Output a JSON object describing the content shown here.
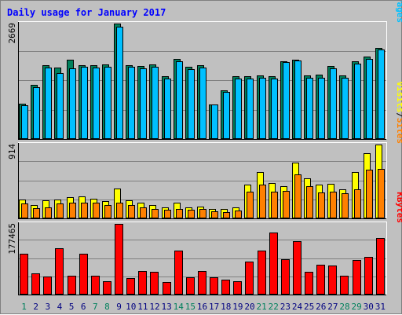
{
  "chart_data": {
    "type": "bar",
    "title": "Daily usage for January 2017",
    "categories": [
      "1",
      "2",
      "3",
      "4",
      "5",
      "6",
      "7",
      "8",
      "9",
      "10",
      "11",
      "12",
      "13",
      "14",
      "15",
      "16",
      "17",
      "18",
      "19",
      "20",
      "21",
      "22",
      "23",
      "24",
      "25",
      "26",
      "27",
      "28",
      "29",
      "30",
      "31"
    ],
    "weekend_days": [
      "1",
      "7",
      "8",
      "14",
      "15",
      "21",
      "22",
      "28",
      "29"
    ],
    "colors": {
      "hits": "#00805c",
      "files": "#00c0ff",
      "sites": "#ff8000",
      "visits": "#ffff00",
      "kbytes": "#ff0000",
      "weekend_label": "#00805c",
      "weekday_label": "#000080",
      "pages": "#00c0ff",
      "files_label": "#0000ff",
      "sites_label": "#ff8000",
      "visits_label": "#ffff00",
      "kbytes_label": "#ff0000",
      "title": "#0000ff"
    },
    "panels": [
      {
        "id": "top",
        "ymax": 2669,
        "ymax_label": "2669",
        "legend": [
          {
            "text": "Pages",
            "color": "#00c0ff"
          },
          {
            "text": "/",
            "color": "#000000"
          },
          {
            "text": "Files",
            "color": "#0000ff"
          },
          {
            "text": "/",
            "color": "#000000"
          },
          {
            "text": "Hits",
            "color": "#00805c"
          }
        ],
        "series": [
          {
            "name": "Hits",
            "values": [
              820,
              1250,
              1700,
              1660,
              1840,
              1700,
              1700,
              1720,
              2669,
              1700,
              1680,
              1730,
              1460,
              1860,
              1670,
              1700,
              800,
              1120,
              1460,
              1460,
              1470,
              1450,
              1800,
              1840,
              1470,
              1480,
              1690,
              1470,
              1800,
              1900,
              2100
            ]
          },
          {
            "name": "Files",
            "values": [
              780,
              1200,
              1660,
              1520,
              1640,
              1670,
              1660,
              1670,
              2590,
              1670,
              1630,
              1670,
              1400,
              1800,
              1620,
              1660,
              790,
              1090,
              1400,
              1400,
              1410,
              1390,
              1780,
              1820,
              1420,
              1420,
              1640,
              1420,
              1740,
              1850,
              2070
            ]
          }
        ]
      },
      {
        "id": "middle",
        "ymax": 914,
        "ymax_label": "914",
        "legend": [
          {
            "text": "Sites",
            "color": "#ff8000"
          },
          {
            "text": "/",
            "color": "#000000"
          },
          {
            "text": "Visits",
            "color": "#ffff00"
          }
        ],
        "series": [
          {
            "name": "Visits",
            "values": [
              230,
              170,
              220,
              230,
              260,
              270,
              240,
              210,
              370,
              220,
              190,
              170,
              140,
              190,
              140,
              150,
              120,
              120,
              140,
              420,
              570,
              440,
              400,
              690,
              500,
              420,
              430,
              360,
              570,
              810,
              910
            ]
          },
          {
            "name": "Sites",
            "values": [
              180,
              130,
              140,
              180,
              190,
              190,
              190,
              170,
              190,
              170,
              140,
              120,
              110,
              120,
              110,
              120,
              90,
              80,
              100,
              330,
              420,
              330,
              340,
              540,
              400,
              320,
              330,
              310,
              360,
              600,
              610
            ]
          }
        ]
      },
      {
        "id": "bottom",
        "ymax": 177465,
        "ymax_label": "177465",
        "legend": [
          {
            "text": "KBytes",
            "color": "#ff0000"
          }
        ],
        "series": [
          {
            "name": "KBytes",
            "values": [
              102000,
              54000,
              45000,
              117000,
              47000,
              103000,
              47000,
              34000,
              177465,
              42000,
              60000,
              57000,
              32000,
              110000,
              43000,
              60000,
              43000,
              38000,
              33000,
              83000,
              111000,
              155000,
              88000,
              134000,
              57000,
              75000,
              73000,
              48000,
              86000,
              95000,
              141000
            ]
          }
        ]
      }
    ]
  }
}
